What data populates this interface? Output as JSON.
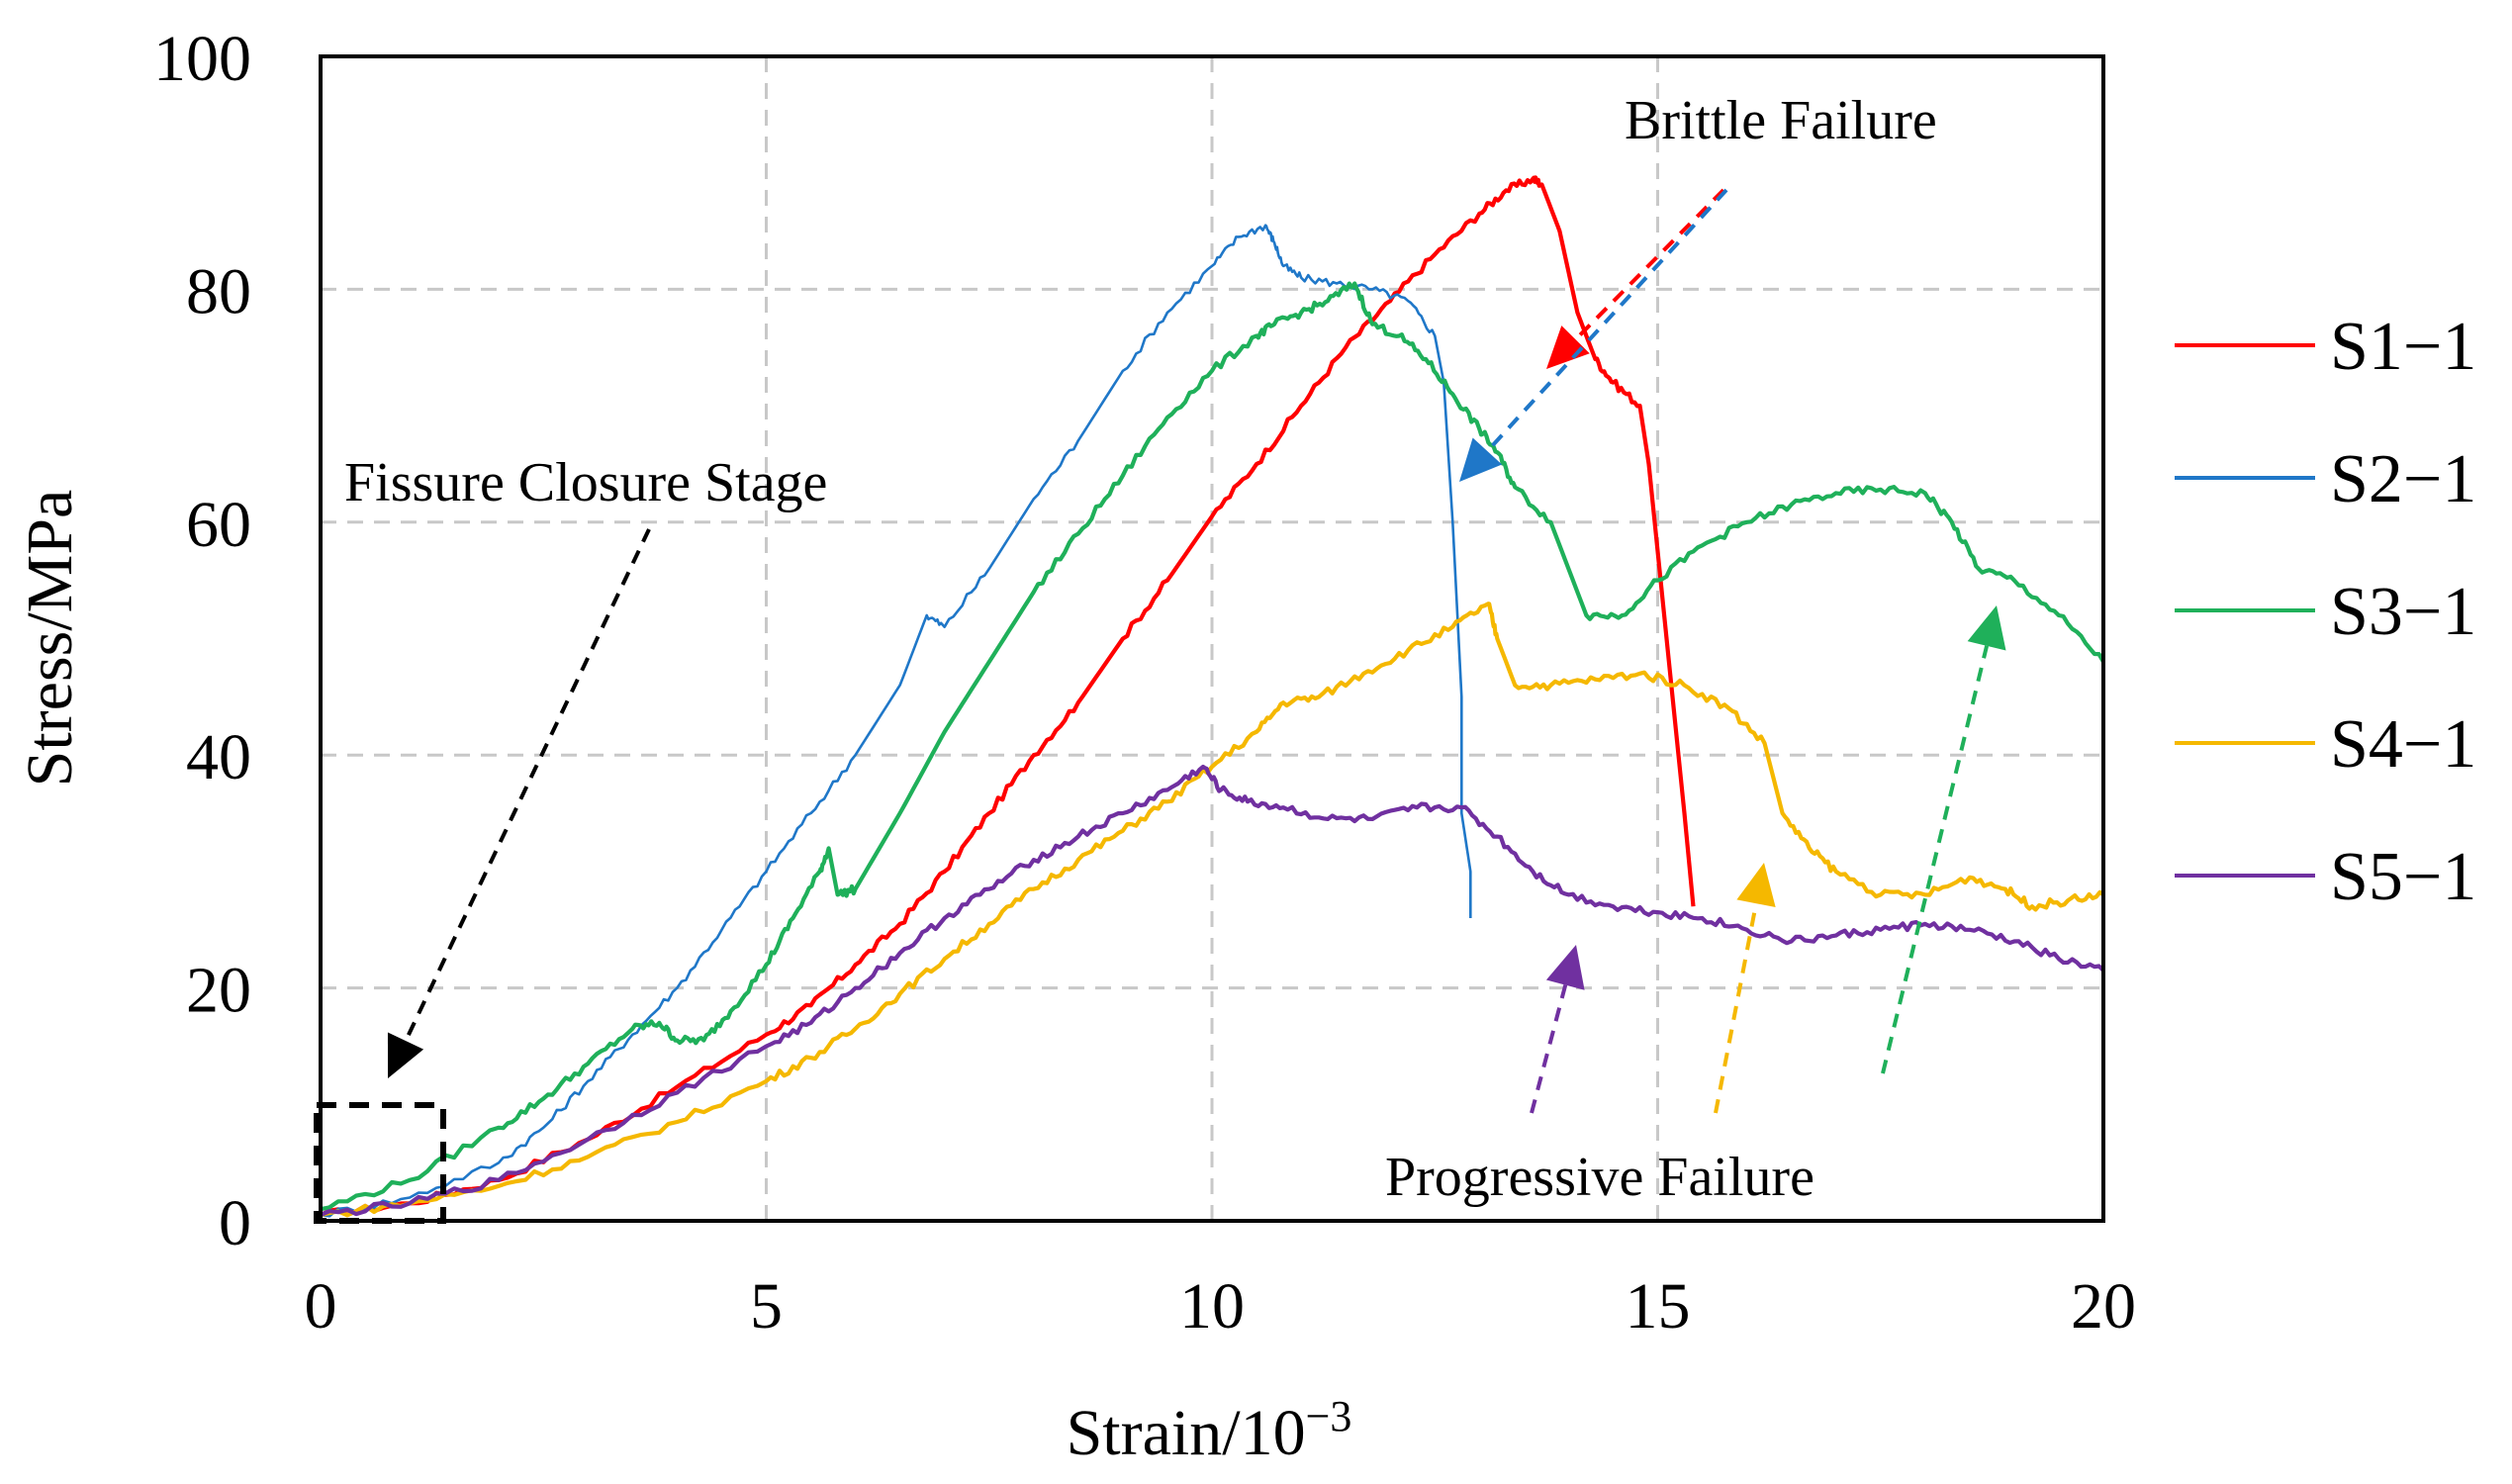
{
  "chart_data": {
    "type": "line",
    "title": "",
    "xlabel": "Strain/10",
    "xlabel_exponent": "−3",
    "ylabel": "Stress/MPa",
    "xlim": [
      0,
      20
    ],
    "ylim": [
      0,
      100
    ],
    "x_ticks": [
      0,
      5,
      10,
      15,
      20
    ],
    "y_ticks": [
      0,
      20,
      40,
      60,
      80,
      100
    ],
    "grid": true,
    "legend_position": "right",
    "series": [
      {
        "name": "S1−1",
        "color": "#ff0000",
        "points": [
          [
            0,
            0.5
          ],
          [
            1,
            1.5
          ],
          [
            2,
            3.5
          ],
          [
            3,
            7
          ],
          [
            4,
            11.5
          ],
          [
            5,
            16
          ],
          [
            5.5,
            18.5
          ],
          [
            6,
            22
          ],
          [
            6.5,
            25.5
          ],
          [
            7,
            30
          ],
          [
            7.5,
            35
          ],
          [
            8,
            40
          ],
          [
            8.5,
            44.5
          ],
          [
            9,
            50
          ],
          [
            9.5,
            55
          ],
          [
            10,
            60.5
          ],
          [
            10.5,
            65
          ],
          [
            11,
            70
          ],
          [
            11.5,
            75
          ],
          [
            12,
            79
          ],
          [
            12.5,
            83
          ],
          [
            13,
            86.5
          ],
          [
            13.3,
            88.5
          ],
          [
            13.6,
            89.5
          ],
          [
            13.7,
            89
          ],
          [
            13.9,
            85
          ],
          [
            14.1,
            78
          ],
          [
            14.3,
            74
          ],
          [
            14.5,
            72
          ],
          [
            14.8,
            70
          ],
          [
            14.9,
            65
          ],
          [
            15.1,
            50
          ],
          [
            15.3,
            35
          ],
          [
            15.4,
            27
          ]
        ]
      },
      {
        "name": "S2−1",
        "color": "#1f77c8",
        "points": [
          [
            0,
            0.5
          ],
          [
            1,
            2
          ],
          [
            2,
            5
          ],
          [
            2.5,
            8
          ],
          [
            3,
            12
          ],
          [
            3.5,
            16
          ],
          [
            4,
            20
          ],
          [
            4.5,
            25
          ],
          [
            5,
            30
          ],
          [
            5.5,
            35
          ],
          [
            6,
            40
          ],
          [
            6.5,
            46
          ],
          [
            6.8,
            52
          ],
          [
            7,
            51
          ],
          [
            7.5,
            56
          ],
          [
            8,
            62
          ],
          [
            8.5,
            67
          ],
          [
            9,
            73
          ],
          [
            9.5,
            78
          ],
          [
            10,
            82
          ],
          [
            10.3,
            84.5
          ],
          [
            10.6,
            85.5
          ],
          [
            10.7,
            84
          ],
          [
            10.8,
            82
          ],
          [
            11,
            81
          ],
          [
            11.4,
            80.5
          ],
          [
            11.8,
            80
          ],
          [
            12.2,
            79
          ],
          [
            12.5,
            76
          ],
          [
            12.6,
            72
          ],
          [
            12.7,
            60
          ],
          [
            12.8,
            45
          ],
          [
            12.8,
            35
          ],
          [
            12.9,
            30
          ],
          [
            12.9,
            26
          ]
        ]
      },
      {
        "name": "S3−1",
        "color": "#1fb05a",
        "points": [
          [
            0,
            1
          ],
          [
            1,
            3.5
          ],
          [
            2,
            8
          ],
          [
            2.5,
            10.5
          ],
          [
            3,
            13.5
          ],
          [
            3.5,
            16.5
          ],
          [
            3.8,
            17
          ],
          [
            4,
            15.5
          ],
          [
            4.3,
            15.5
          ],
          [
            4.6,
            18
          ],
          [
            5,
            22
          ],
          [
            5.3,
            26
          ],
          [
            5.6,
            30
          ],
          [
            5.7,
            32
          ],
          [
            5.8,
            28
          ],
          [
            6,
            28.5
          ],
          [
            6.5,
            35
          ],
          [
            7,
            42
          ],
          [
            7.5,
            48
          ],
          [
            8,
            54
          ],
          [
            8.5,
            59
          ],
          [
            9,
            64
          ],
          [
            9.5,
            69
          ],
          [
            10,
            73
          ],
          [
            10.5,
            76
          ],
          [
            10.7,
            77
          ],
          [
            11,
            78
          ],
          [
            11.3,
            79
          ],
          [
            11.6,
            80.5
          ],
          [
            11.8,
            77
          ],
          [
            12.1,
            76
          ],
          [
            12.4,
            74
          ],
          [
            12.7,
            71
          ],
          [
            13,
            68
          ],
          [
            13.2,
            66
          ],
          [
            13.4,
            63
          ],
          [
            13.8,
            60
          ],
          [
            14.2,
            52
          ],
          [
            14.6,
            52
          ],
          [
            15,
            55
          ],
          [
            15.5,
            58
          ],
          [
            16,
            60
          ],
          [
            16.5,
            61.5
          ],
          [
            17,
            62.5
          ],
          [
            17.5,
            62.8
          ],
          [
            18,
            62.5
          ],
          [
            18.3,
            60
          ],
          [
            18.6,
            56
          ],
          [
            19,
            55
          ],
          [
            19.5,
            52
          ],
          [
            20,
            48
          ]
        ]
      },
      {
        "name": "S4−1",
        "color": "#f5b800",
        "points": [
          [
            0,
            0.5
          ],
          [
            1,
            1.5
          ],
          [
            2,
            3
          ],
          [
            3,
            5.5
          ],
          [
            4,
            8.5
          ],
          [
            5,
            12
          ],
          [
            5.5,
            14
          ],
          [
            6,
            16.5
          ],
          [
            6.5,
            19.5
          ],
          [
            7,
            22.5
          ],
          [
            7.5,
            25.5
          ],
          [
            8,
            28.5
          ],
          [
            8.5,
            31
          ],
          [
            9,
            33.5
          ],
          [
            9.5,
            36
          ],
          [
            10,
            39
          ],
          [
            10.5,
            42
          ],
          [
            10.8,
            44.5
          ],
          [
            11.2,
            45
          ],
          [
            11.7,
            47
          ],
          [
            12.2,
            49
          ],
          [
            12.7,
            51
          ],
          [
            13.1,
            53
          ],
          [
            13.2,
            50
          ],
          [
            13.4,
            46
          ],
          [
            13.8,
            46
          ],
          [
            14.3,
            46.5
          ],
          [
            14.8,
            47
          ],
          [
            15.3,
            46
          ],
          [
            15.8,
            44
          ],
          [
            16.2,
            41
          ],
          [
            16.4,
            35
          ],
          [
            16.7,
            32
          ],
          [
            17,
            30
          ],
          [
            17.5,
            28
          ],
          [
            18,
            28
          ],
          [
            18.5,
            29.5
          ],
          [
            18.9,
            28.5
          ],
          [
            19.2,
            27
          ],
          [
            19.6,
            27.5
          ],
          [
            20,
            28
          ]
        ]
      },
      {
        "name": "S5−1",
        "color": "#7030a0",
        "points": [
          [
            0,
            0.5
          ],
          [
            1,
            1.5
          ],
          [
            2,
            3.5
          ],
          [
            3,
            7
          ],
          [
            4,
            11
          ],
          [
            5,
            15
          ],
          [
            5.5,
            17
          ],
          [
            6,
            20
          ],
          [
            6.5,
            23
          ],
          [
            7,
            26
          ],
          [
            7.5,
            28.5
          ],
          [
            8,
            31
          ],
          [
            8.5,
            33
          ],
          [
            9,
            35
          ],
          [
            9.5,
            37
          ],
          [
            9.9,
            39
          ],
          [
            10.1,
            37
          ],
          [
            10.4,
            36
          ],
          [
            10.8,
            35.5
          ],
          [
            11.3,
            34.5
          ],
          [
            11.8,
            34.5
          ],
          [
            12.3,
            35.5
          ],
          [
            12.8,
            35.5
          ],
          [
            13.2,
            33
          ],
          [
            13.6,
            30
          ],
          [
            14,
            28
          ],
          [
            14.5,
            27
          ],
          [
            15,
            26.5
          ],
          [
            15.5,
            26
          ],
          [
            16,
            25
          ],
          [
            16.5,
            24
          ],
          [
            17,
            24.5
          ],
          [
            17.5,
            25
          ],
          [
            18,
            25.5
          ],
          [
            18.5,
            25
          ],
          [
            19,
            24
          ],
          [
            19.5,
            22.5
          ],
          [
            20,
            21.5
          ]
        ]
      }
    ],
    "annotations": [
      {
        "text": "Brittle Failure",
        "color": "#000000"
      },
      {
        "text": "Fissure Closure Stage",
        "color": "#000000"
      },
      {
        "text": "Progressive Failure",
        "color": "#000000"
      }
    ]
  }
}
